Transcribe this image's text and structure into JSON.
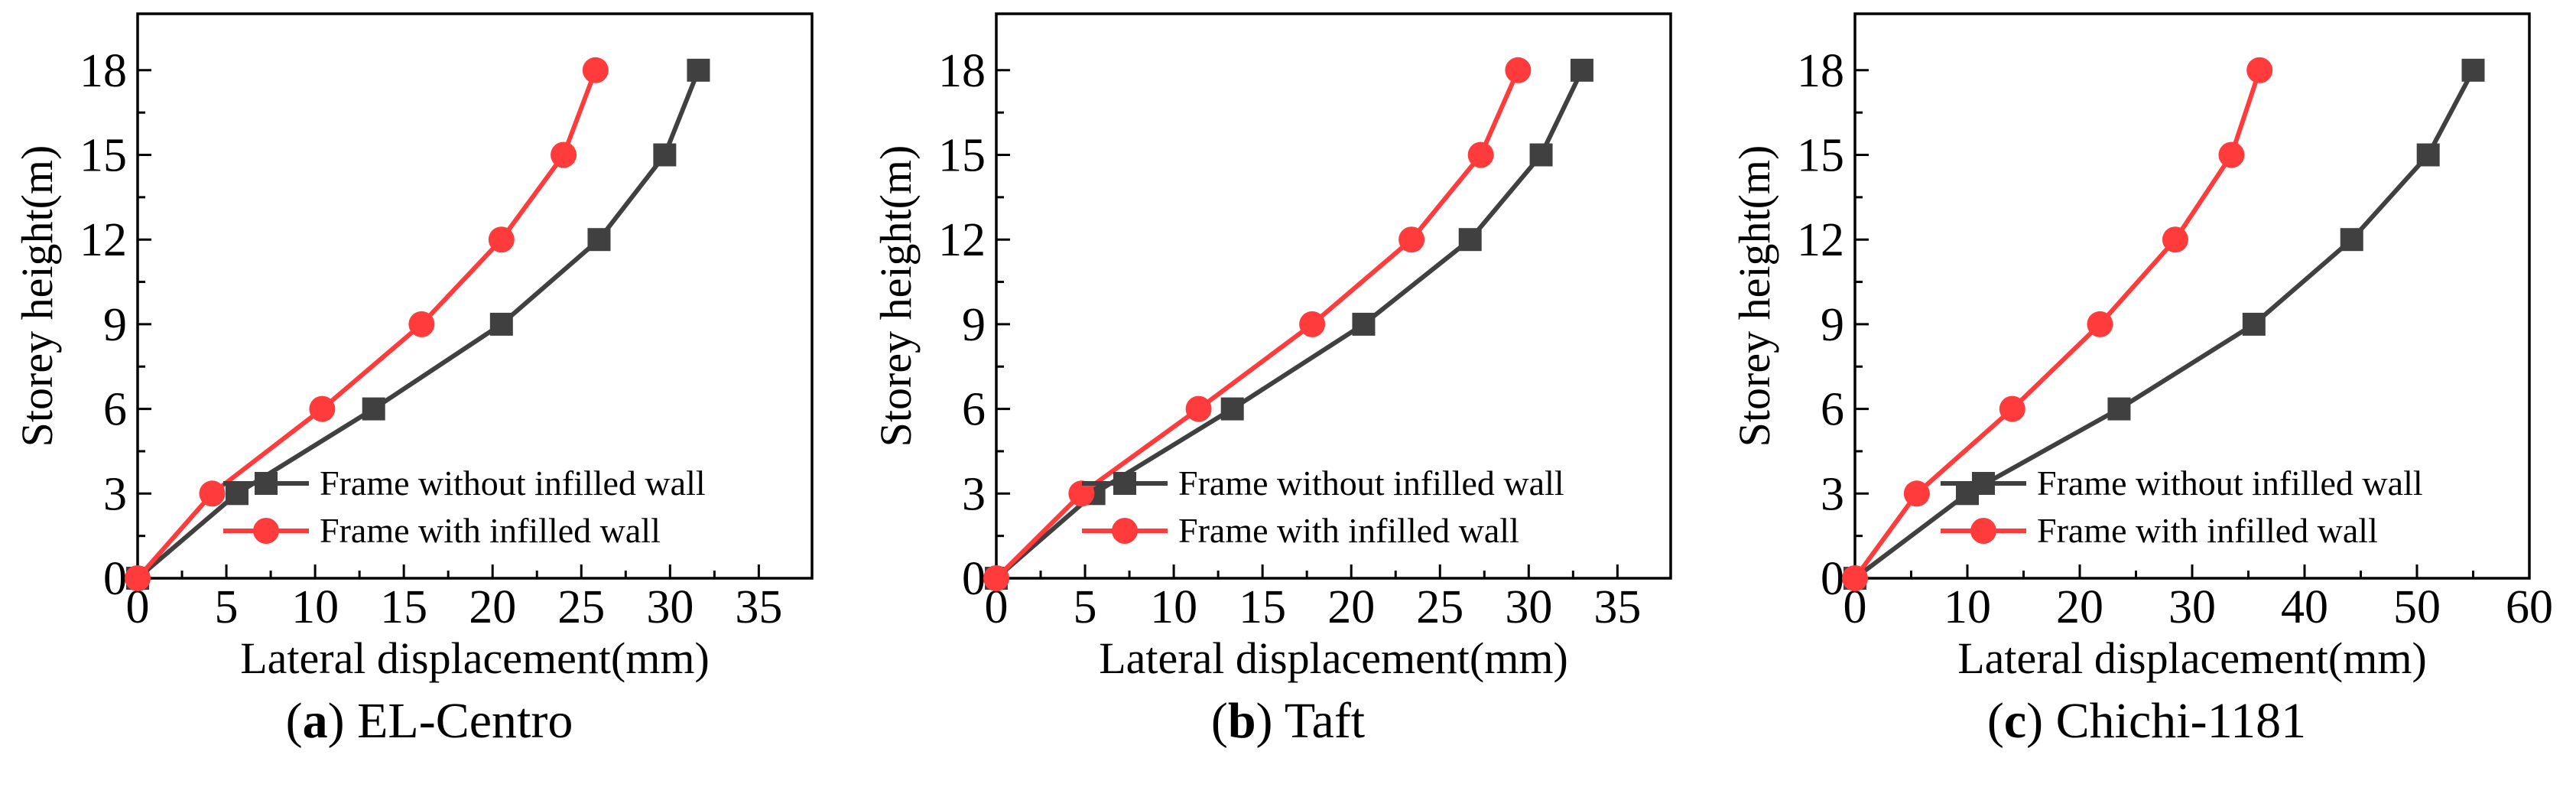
{
  "legend": {
    "without": "Frame without infilled wall",
    "with": "Frame with infilled wall"
  },
  "colors": {
    "without": "#404040",
    "with": "#ff3b3b"
  },
  "chart_data": [
    {
      "type": "line",
      "caption_letter": "a",
      "caption_text": "EL-Centro",
      "xlabel": "Lateral displacement(mm)",
      "ylabel": "Storey height(m)",
      "xlim": [
        0,
        38
      ],
      "ylim": [
        0,
        20
      ],
      "xticks": [
        0,
        5,
        10,
        15,
        20,
        25,
        30,
        35
      ],
      "yticks": [
        0,
        3,
        6,
        9,
        12,
        15,
        18
      ],
      "legend_position": "lower-right",
      "grid": false,
      "series": [
        {
          "name": "Frame without infilled wall",
          "marker": "square",
          "points": [
            [
              0,
              0
            ],
            [
              5.6,
              3
            ],
            [
              13.3,
              6
            ],
            [
              20.5,
              9
            ],
            [
              26,
              12
            ],
            [
              29.7,
              15
            ],
            [
              31.6,
              18
            ]
          ]
        },
        {
          "name": "Frame with infilled wall",
          "marker": "circle",
          "points": [
            [
              0,
              0
            ],
            [
              4.2,
              3
            ],
            [
              10.4,
              6
            ],
            [
              16,
              9
            ],
            [
              20.5,
              12
            ],
            [
              24,
              15
            ],
            [
              25.8,
              18
            ]
          ]
        }
      ]
    },
    {
      "type": "line",
      "caption_letter": "b",
      "caption_text": "Taft",
      "xlabel": "Lateral displacement(mm)",
      "ylabel": "Storey height(m)",
      "xlim": [
        0,
        38
      ],
      "ylim": [
        0,
        20
      ],
      "xticks": [
        0,
        5,
        10,
        15,
        20,
        25,
        30,
        35
      ],
      "yticks": [
        0,
        3,
        6,
        9,
        12,
        15,
        18
      ],
      "legend_position": "lower-right",
      "grid": false,
      "series": [
        {
          "name": "Frame without infilled wall",
          "marker": "square",
          "points": [
            [
              0,
              0
            ],
            [
              5.5,
              3
            ],
            [
              13.3,
              6
            ],
            [
              20.7,
              9
            ],
            [
              26.7,
              12
            ],
            [
              30.7,
              15
            ],
            [
              33,
              18
            ]
          ]
        },
        {
          "name": "Frame with infilled wall",
          "marker": "circle",
          "points": [
            [
              0,
              0
            ],
            [
              4.8,
              3
            ],
            [
              11.4,
              6
            ],
            [
              17.8,
              9
            ],
            [
              23.4,
              12
            ],
            [
              27.3,
              15
            ],
            [
              29.4,
              18
            ]
          ]
        }
      ]
    },
    {
      "type": "line",
      "caption_letter": "c",
      "caption_text": "Chichi-1181",
      "xlabel": "Lateral displacement(mm)",
      "ylabel": "Storey height(m)",
      "xlim": [
        0,
        60
      ],
      "ylim": [
        0,
        20
      ],
      "xticks": [
        0,
        10,
        20,
        30,
        40,
        50,
        60
      ],
      "yticks": [
        0,
        3,
        6,
        9,
        12,
        15,
        18
      ],
      "legend_position": "lower-right",
      "grid": false,
      "series": [
        {
          "name": "Frame without infilled wall",
          "marker": "square",
          "points": [
            [
              0,
              0
            ],
            [
              10,
              3
            ],
            [
              23.5,
              6
            ],
            [
              35.5,
              9
            ],
            [
              44.2,
              12
            ],
            [
              51,
              15
            ],
            [
              55,
              18
            ]
          ]
        },
        {
          "name": "Frame with infilled wall",
          "marker": "circle",
          "points": [
            [
              0,
              0
            ],
            [
              5.5,
              3
            ],
            [
              14,
              6
            ],
            [
              21.8,
              9
            ],
            [
              28.5,
              12
            ],
            [
              33.5,
              15
            ],
            [
              36,
              18
            ]
          ]
        }
      ]
    }
  ]
}
